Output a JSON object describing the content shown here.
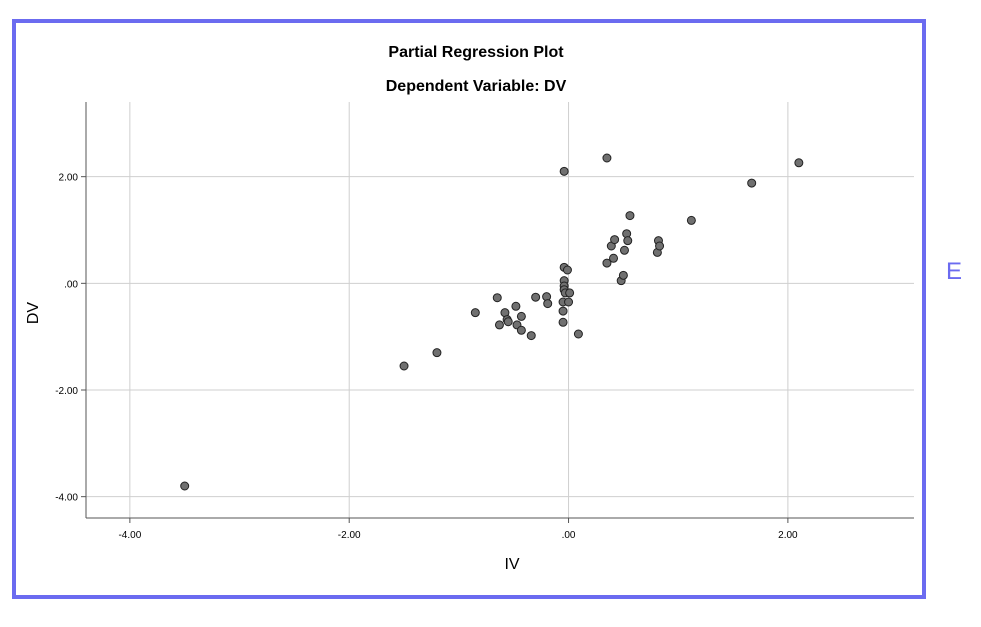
{
  "side_label": "E",
  "frame_color": "#6b6bf0",
  "point_color": "#707070",
  "chart_data": {
    "type": "scatter",
    "title": "Partial Regression Plot",
    "subtitle": "Dependent Variable: DV",
    "xlabel": "IV",
    "ylabel": "DV",
    "xlim": [
      -4.4,
      3.15
    ],
    "ylim": [
      -4.4,
      3.4
    ],
    "grid": true,
    "x_ticks": [
      -4,
      -2,
      0,
      2
    ],
    "x_tick_labels": [
      "-4.00",
      "-2.00",
      ".00",
      "2.00"
    ],
    "y_ticks": [
      2,
      0,
      -2,
      -4
    ],
    "y_tick_labels": [
      "2.00",
      ".00",
      "-2.00",
      "-4.00"
    ],
    "points": [
      {
        "x": -3.5,
        "y": -3.8
      },
      {
        "x": -1.5,
        "y": -1.55
      },
      {
        "x": -1.2,
        "y": -1.3
      },
      {
        "x": -0.85,
        "y": -0.55
      },
      {
        "x": -0.65,
        "y": -0.27
      },
      {
        "x": -0.63,
        "y": -0.78
      },
      {
        "x": -0.58,
        "y": -0.55
      },
      {
        "x": -0.56,
        "y": -0.68
      },
      {
        "x": -0.55,
        "y": -0.72
      },
      {
        "x": -0.48,
        "y": -0.43
      },
      {
        "x": -0.47,
        "y": -0.78
      },
      {
        "x": -0.43,
        "y": -0.62
      },
      {
        "x": -0.43,
        "y": -0.88
      },
      {
        "x": -0.34,
        "y": -0.98
      },
      {
        "x": -0.3,
        "y": -0.26
      },
      {
        "x": -0.2,
        "y": -0.25
      },
      {
        "x": -0.19,
        "y": -0.38
      },
      {
        "x": -0.05,
        "y": -0.35
      },
      {
        "x": -0.05,
        "y": -0.52
      },
      {
        "x": -0.05,
        "y": -0.73
      },
      {
        "x": -0.04,
        "y": 2.1
      },
      {
        "x": -0.04,
        "y": 0.3
      },
      {
        "x": -0.04,
        "y": 0.05
      },
      {
        "x": -0.04,
        "y": -0.05
      },
      {
        "x": -0.04,
        "y": -0.12
      },
      {
        "x": -0.03,
        "y": -0.18
      },
      {
        "x": -0.01,
        "y": 0.25
      },
      {
        "x": 0.0,
        "y": -0.35
      },
      {
        "x": 0.01,
        "y": -0.18
      },
      {
        "x": 0.09,
        "y": -0.95
      },
      {
        "x": 0.35,
        "y": 2.35
      },
      {
        "x": 0.35,
        "y": 0.38
      },
      {
        "x": 0.39,
        "y": 0.7
      },
      {
        "x": 0.41,
        "y": 0.47
      },
      {
        "x": 0.42,
        "y": 0.82
      },
      {
        "x": 0.48,
        "y": 0.05
      },
      {
        "x": 0.5,
        "y": 0.15
      },
      {
        "x": 0.51,
        "y": 0.62
      },
      {
        "x": 0.53,
        "y": 0.93
      },
      {
        "x": 0.54,
        "y": 0.8
      },
      {
        "x": 0.56,
        "y": 1.27
      },
      {
        "x": 0.81,
        "y": 0.58
      },
      {
        "x": 0.82,
        "y": 0.8
      },
      {
        "x": 0.83,
        "y": 0.7
      },
      {
        "x": 1.12,
        "y": 1.18
      },
      {
        "x": 1.67,
        "y": 1.88
      },
      {
        "x": 2.1,
        "y": 2.26
      }
    ]
  }
}
